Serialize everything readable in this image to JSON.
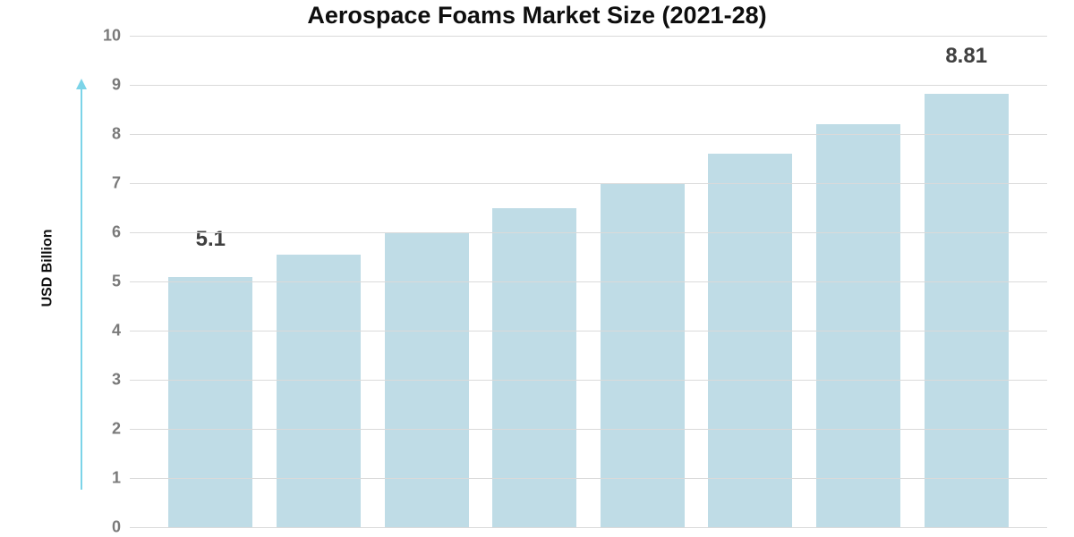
{
  "chart": {
    "type": "bar",
    "title": "Aerospace Foams Market Size (2021-28)",
    "title_fontsize": 27,
    "title_color": "#0e0e0e",
    "y_axis_label": "USD Billion",
    "y_axis_label_fontsize": 16,
    "y_axis_label_color": "#0e0e0e",
    "ylim": [
      0,
      10
    ],
    "ytick_step": 1,
    "ytick_color": "#7a7a7a",
    "ytick_fontsize": 18,
    "grid_color": "#dadada",
    "background_color": "#ffffff",
    "bar_color": "#bfdce6",
    "bar_width_ratio": 0.78,
    "arrow_color": "#7cd4e8",
    "value_label_color": "#3f3f3f",
    "value_label_fontsize": 24,
    "bars": [
      {
        "value": 5.1,
        "label": "5.1"
      },
      {
        "value": 5.55,
        "label": ""
      },
      {
        "value": 6.0,
        "label": ""
      },
      {
        "value": 6.5,
        "label": ""
      },
      {
        "value": 7.0,
        "label": ""
      },
      {
        "value": 7.6,
        "label": ""
      },
      {
        "value": 8.2,
        "label": ""
      },
      {
        "value": 8.81,
        "label": "8.81"
      }
    ]
  }
}
